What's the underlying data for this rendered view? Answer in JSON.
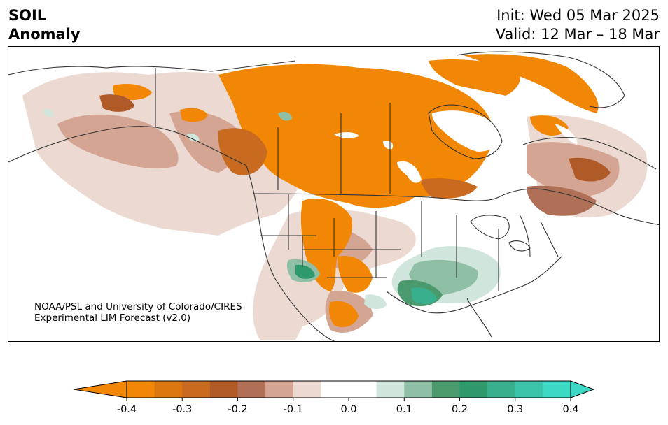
{
  "header": {
    "title_line1": "SOIL",
    "title_line2": "Anomaly",
    "init_text": "Init: Wed 05 Mar 2025",
    "valid_text": "Valid: 12 Mar – 18 Mar"
  },
  "credit": {
    "line1": "NOAA/PSL and University of Colorado/CIRES",
    "line2": "Experimental LIM Forecast (v2.0)"
  },
  "colorbar": {
    "colors": [
      "#f28705",
      "#dc760e",
      "#c86a20",
      "#b05a28",
      "#b07058",
      "#d4a592",
      "#ecdad2",
      "#ffffff",
      "#ffffff",
      "#d0e5db",
      "#8fc0a5",
      "#4a9a6e",
      "#2e9a6b",
      "#37af8d",
      "#3cc4aa",
      "#3cd9c5"
    ],
    "under_color": "#f28705",
    "over_color": "#3cd9c5",
    "tick_labels": [
      "-0.4",
      "-0.3",
      "-0.2",
      "-0.1",
      "0.0",
      "0.1",
      "0.2",
      "0.3",
      "0.4"
    ]
  },
  "legend_colors": {
    "strong_dry": "#f28705",
    "dry": "#c86a20",
    "moderate_dry": "#b07058",
    "slight_dry": "#ecdad2",
    "slight_wet": "#d0e5db",
    "wet": "#4a9a6e",
    "strong_wet": "#37af8d"
  }
}
